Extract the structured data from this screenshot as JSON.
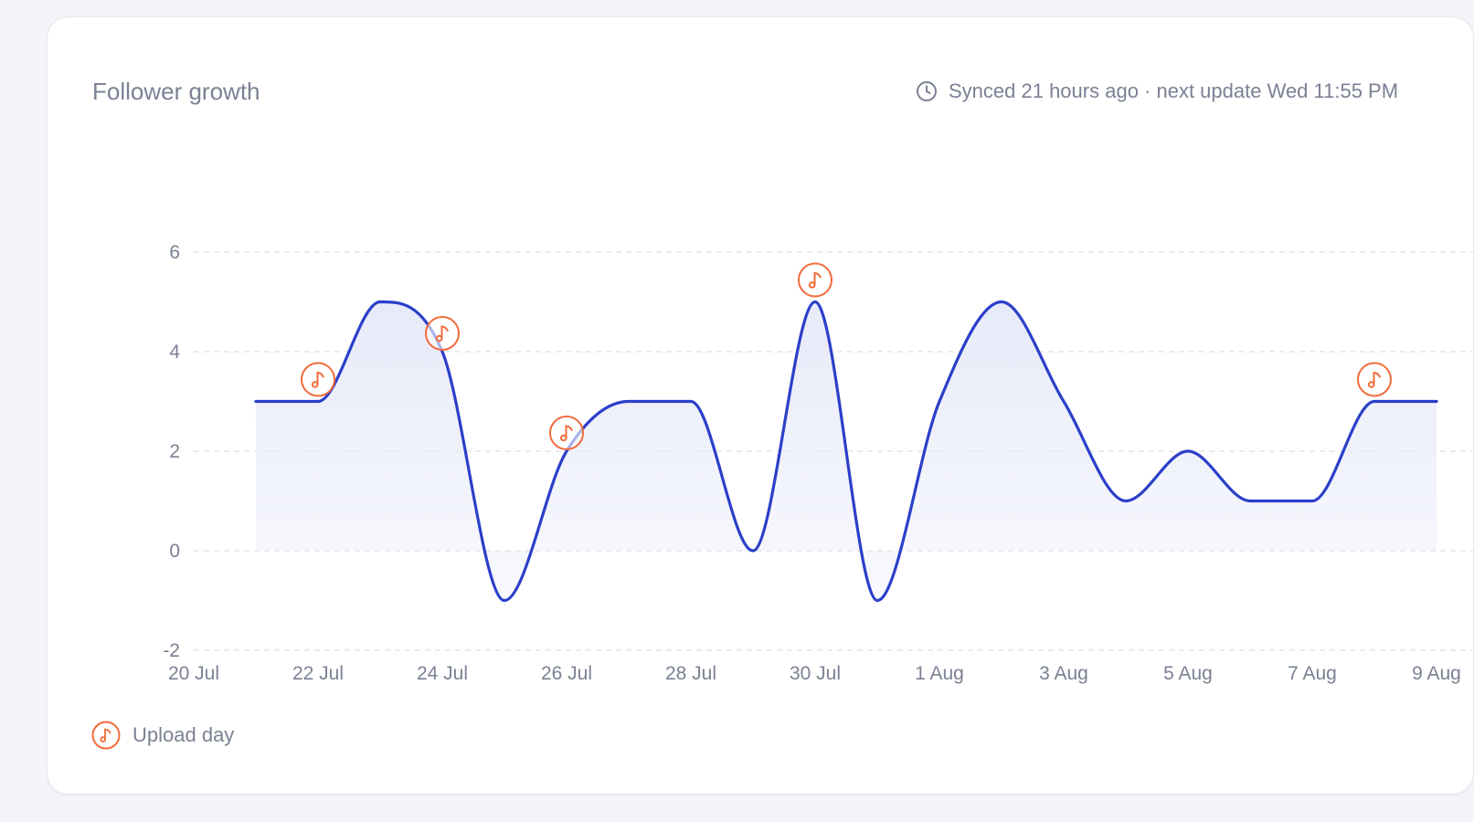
{
  "card": {
    "title": "Follower growth",
    "sync_text": "Synced 21 hours ago · next update Wed 11:55 PM",
    "sync_icon": "clock-icon"
  },
  "legend": {
    "icon": "music-note-icon",
    "label": "Upload day"
  },
  "colors": {
    "line": "#2b3fc9",
    "area": "#e6e9f8",
    "marker": "#f26b3a",
    "grid": "#dcdfe8",
    "text": "#7b8194"
  },
  "chart_data": {
    "type": "area",
    "x_tick_labels": [
      "20 Jul",
      "22 Jul",
      "24 Jul",
      "26 Jul",
      "28 Jul",
      "30 Jul",
      "1 Aug",
      "3 Aug",
      "5 Aug",
      "7 Aug",
      "9 Aug"
    ],
    "y_ticks": [
      -2,
      0,
      2,
      4,
      6
    ],
    "ylim": [
      -2,
      6
    ],
    "grid": true,
    "legend_position": "bottom-left",
    "series": [
      {
        "x": [
          "21 Jul",
          "22 Jul",
          "23 Jul",
          "24 Jul",
          "25 Jul",
          "26 Jul",
          "27 Jul",
          "28 Jul",
          "29 Jul",
          "30 Jul",
          "31 Jul",
          "1 Aug",
          "2 Aug",
          "3 Aug",
          "4 Aug",
          "5 Aug",
          "6 Aug",
          "7 Aug",
          "8 Aug",
          "9 Aug"
        ],
        "values": [
          3,
          3,
          5,
          4,
          -1,
          2,
          3,
          3,
          0,
          5,
          -1,
          3,
          5,
          3,
          1,
          2,
          1,
          1,
          3,
          3
        ]
      }
    ],
    "upload_days": [
      "22 Jul",
      "24 Jul",
      "26 Jul",
      "30 Jul",
      "8 Aug"
    ]
  }
}
